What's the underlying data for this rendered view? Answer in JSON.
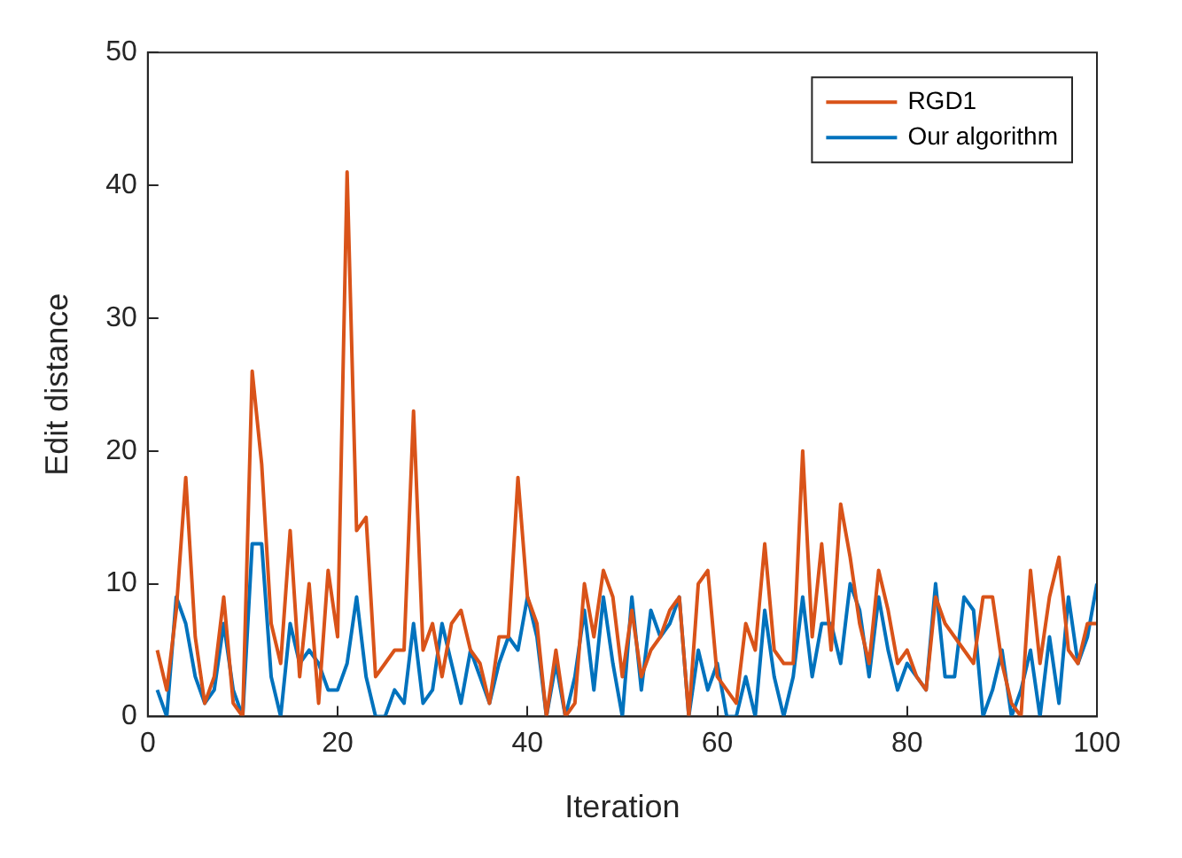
{
  "chart_data": {
    "type": "line",
    "xlabel": "Iteration",
    "ylabel": "Edit distance",
    "x": [
      1,
      2,
      3,
      4,
      5,
      6,
      7,
      8,
      9,
      10,
      11,
      12,
      13,
      14,
      15,
      16,
      17,
      18,
      19,
      20,
      21,
      22,
      23,
      24,
      25,
      26,
      27,
      28,
      29,
      30,
      31,
      32,
      33,
      34,
      35,
      36,
      37,
      38,
      39,
      40,
      41,
      42,
      43,
      44,
      45,
      46,
      47,
      48,
      49,
      50,
      51,
      52,
      53,
      54,
      55,
      56,
      57,
      58,
      59,
      60,
      61,
      62,
      63,
      64,
      65,
      66,
      67,
      68,
      69,
      70,
      71,
      72,
      73,
      74,
      75,
      76,
      77,
      78,
      79,
      80,
      81,
      82,
      83,
      84,
      85,
      86,
      87,
      88,
      89,
      90,
      91,
      92,
      93,
      94,
      95,
      96,
      97,
      98,
      99,
      100
    ],
    "series": [
      {
        "name": "RGD1",
        "color": "#d95319",
        "values": [
          5,
          2,
          8,
          18,
          6,
          1,
          3,
          9,
          1,
          0,
          26,
          19,
          7,
          4,
          14,
          3,
          10,
          1,
          11,
          6,
          41,
          14,
          15,
          3,
          4,
          5,
          5,
          23,
          5,
          7,
          3,
          7,
          8,
          5,
          4,
          1,
          6,
          6,
          18,
          9,
          7,
          0,
          5,
          0,
          1,
          10,
          6,
          11,
          9,
          3,
          8,
          3,
          5,
          6,
          8,
          9,
          0,
          10,
          11,
          3,
          2,
          1,
          7,
          5,
          13,
          5,
          4,
          4,
          20,
          6,
          13,
          5,
          16,
          12,
          7,
          4,
          11,
          8,
          4,
          5,
          3,
          2,
          9,
          7,
          6,
          5,
          4,
          9,
          9,
          4,
          1,
          0,
          11,
          4,
          9,
          12,
          5,
          4,
          7,
          7
        ]
      },
      {
        "name": "Our algorithm",
        "color": "#0072bd",
        "values": [
          2,
          0,
          9,
          7,
          3,
          1,
          2,
          7,
          2,
          0,
          13,
          13,
          3,
          0,
          7,
          4,
          5,
          4,
          2,
          2,
          4,
          9,
          3,
          0,
          0,
          2,
          1,
          7,
          1,
          2,
          7,
          4,
          1,
          5,
          3,
          1,
          4,
          6,
          5,
          9,
          6,
          0,
          4,
          0,
          3,
          8,
          2,
          9,
          4,
          0,
          9,
          2,
          8,
          6,
          7,
          9,
          0,
          5,
          2,
          4,
          0,
          0,
          3,
          0,
          8,
          3,
          0,
          3,
          9,
          3,
          7,
          7,
          4,
          10,
          8,
          3,
          9,
          5,
          2,
          4,
          3,
          2,
          10,
          3,
          3,
          9,
          8,
          0,
          2,
          5,
          0,
          2,
          5,
          0,
          6,
          1,
          9,
          4,
          6,
          10
        ]
      }
    ],
    "xlim": [
      0,
      100
    ],
    "xticks": [
      0,
      20,
      40,
      60,
      80,
      100
    ],
    "ylim": [
      0,
      50
    ],
    "yticks": [
      0,
      10,
      20,
      30,
      40,
      50
    ],
    "grid": false,
    "legend": "top right",
    "marker": "none",
    "line_style": "solid"
  }
}
